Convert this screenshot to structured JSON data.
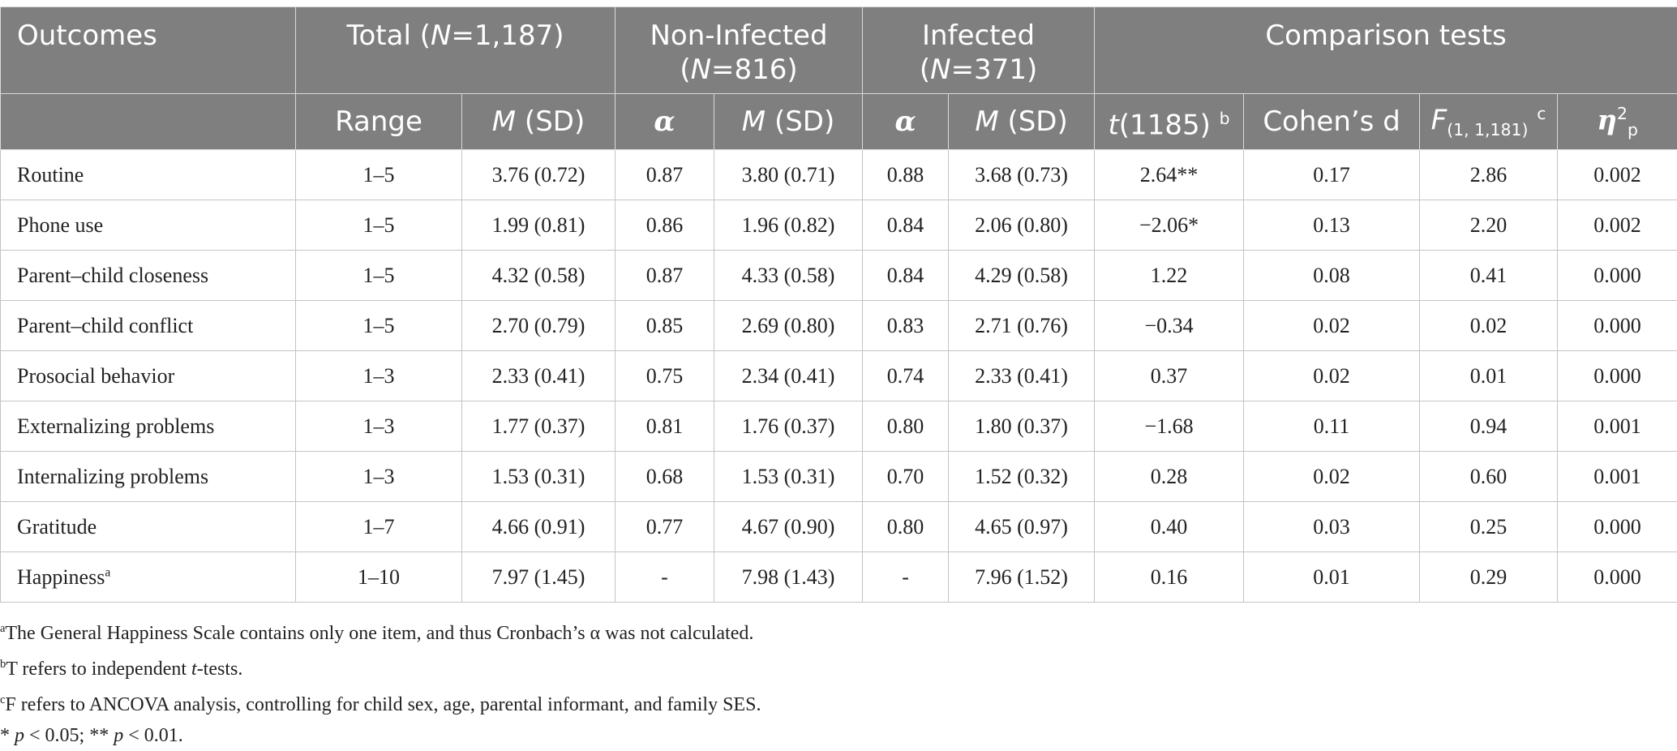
{
  "header": {
    "outcomes": "Outcomes",
    "total": {
      "pre": "Total (",
      "n": "N",
      "post": "=1,187)"
    },
    "non_infected": {
      "line1": "Non-Infected",
      "open": "(",
      "n": "N",
      "post": "=816)"
    },
    "infected": {
      "line1": "Infected",
      "open": "(",
      "n": "N",
      "post": "=371)"
    },
    "comparison": "Comparison tests",
    "sub": {
      "range": "Range",
      "m": "M",
      "sd": " (SD)",
      "alpha": "α",
      "t": "t",
      "t_rest": "(1185)",
      "t_note": "b",
      "cohen": "Cohen’s d",
      "f": "F",
      "f_sub": "(1, 1,181)",
      "f_note": "c",
      "eta": "η",
      "eta_sup": "2",
      "eta_sub": "p"
    }
  },
  "rows": [
    {
      "outcome": "Routine",
      "sup": "",
      "range": "1–5",
      "total_msd": "3.76 (0.72)",
      "ni_alpha": "0.87",
      "ni_msd": "3.80 (0.71)",
      "in_alpha": "0.88",
      "in_msd": "3.68 (0.73)",
      "t": "2.64**",
      "d": "0.17",
      "f": "2.86",
      "eta": "0.002"
    },
    {
      "outcome": "Phone use",
      "sup": "",
      "range": "1–5",
      "total_msd": "1.99 (0.81)",
      "ni_alpha": "0.86",
      "ni_msd": "1.96 (0.82)",
      "in_alpha": "0.84",
      "in_msd": "2.06 (0.80)",
      "t": "−2.06*",
      "d": "0.13",
      "f": "2.20",
      "eta": "0.002"
    },
    {
      "outcome": "Parent–child closeness",
      "sup": "",
      "range": "1–5",
      "total_msd": "4.32 (0.58)",
      "ni_alpha": "0.87",
      "ni_msd": "4.33 (0.58)",
      "in_alpha": "0.84",
      "in_msd": "4.29 (0.58)",
      "t": "1.22",
      "d": "0.08",
      "f": "0.41",
      "eta": "0.000"
    },
    {
      "outcome": "Parent–child conflict",
      "sup": "",
      "range": "1–5",
      "total_msd": "2.70 (0.79)",
      "ni_alpha": "0.85",
      "ni_msd": "2.69 (0.80)",
      "in_alpha": "0.83",
      "in_msd": "2.71 (0.76)",
      "t": "−0.34",
      "d": "0.02",
      "f": "0.02",
      "eta": "0.000"
    },
    {
      "outcome": "Prosocial behavior",
      "sup": "",
      "range": "1–3",
      "total_msd": "2.33 (0.41)",
      "ni_alpha": "0.75",
      "ni_msd": "2.34 (0.41)",
      "in_alpha": "0.74",
      "in_msd": "2.33 (0.41)",
      "t": "0.37",
      "d": "0.02",
      "f": "0.01",
      "eta": "0.000"
    },
    {
      "outcome": "Externalizing problems",
      "sup": "",
      "range": "1–3",
      "total_msd": "1.77 (0.37)",
      "ni_alpha": "0.81",
      "ni_msd": "1.76 (0.37)",
      "in_alpha": "0.80",
      "in_msd": "1.80 (0.37)",
      "t": "−1.68",
      "d": "0.11",
      "f": "0.94",
      "eta": "0.001"
    },
    {
      "outcome": "Internalizing problems",
      "sup": "",
      "range": "1–3",
      "total_msd": "1.53 (0.31)",
      "ni_alpha": "0.68",
      "ni_msd": "1.53 (0.31)",
      "in_alpha": "0.70",
      "in_msd": "1.52 (0.32)",
      "t": "0.28",
      "d": "0.02",
      "f": "0.60",
      "eta": "0.001"
    },
    {
      "outcome": "Gratitude",
      "sup": "",
      "range": "1–7",
      "total_msd": "4.66 (0.91)",
      "ni_alpha": "0.77",
      "ni_msd": "4.67 (0.90)",
      "in_alpha": "0.80",
      "in_msd": "4.65 (0.97)",
      "t": "0.40",
      "d": "0.03",
      "f": "0.25",
      "eta": "0.000"
    },
    {
      "outcome": "Happiness",
      "sup": "a",
      "range": "1–10",
      "total_msd": "7.97 (1.45)",
      "ni_alpha": "-",
      "ni_msd": "7.98 (1.43)",
      "in_alpha": "-",
      "in_msd": "7.96 (1.52)",
      "t": "0.16",
      "d": "0.01",
      "f": "0.29",
      "eta": "0.000"
    }
  ],
  "notes": {
    "a": {
      "mark": "a",
      "text": "The General Happiness Scale contains only one item, and thus Cronbach’s α was not calculated."
    },
    "b": {
      "mark": "b",
      "pre": "T refers to independent ",
      "it": "t",
      "post": "-tests."
    },
    "c": {
      "mark": "c",
      "text": "F refers to ANCOVA analysis, controlling for child sex, age, parental informant, and family SES."
    },
    "p": {
      "pre1": "* ",
      "p1": "p",
      "post1": " < 0.05; ** ",
      "p2": "p",
      "post2": " < 0.01."
    }
  }
}
